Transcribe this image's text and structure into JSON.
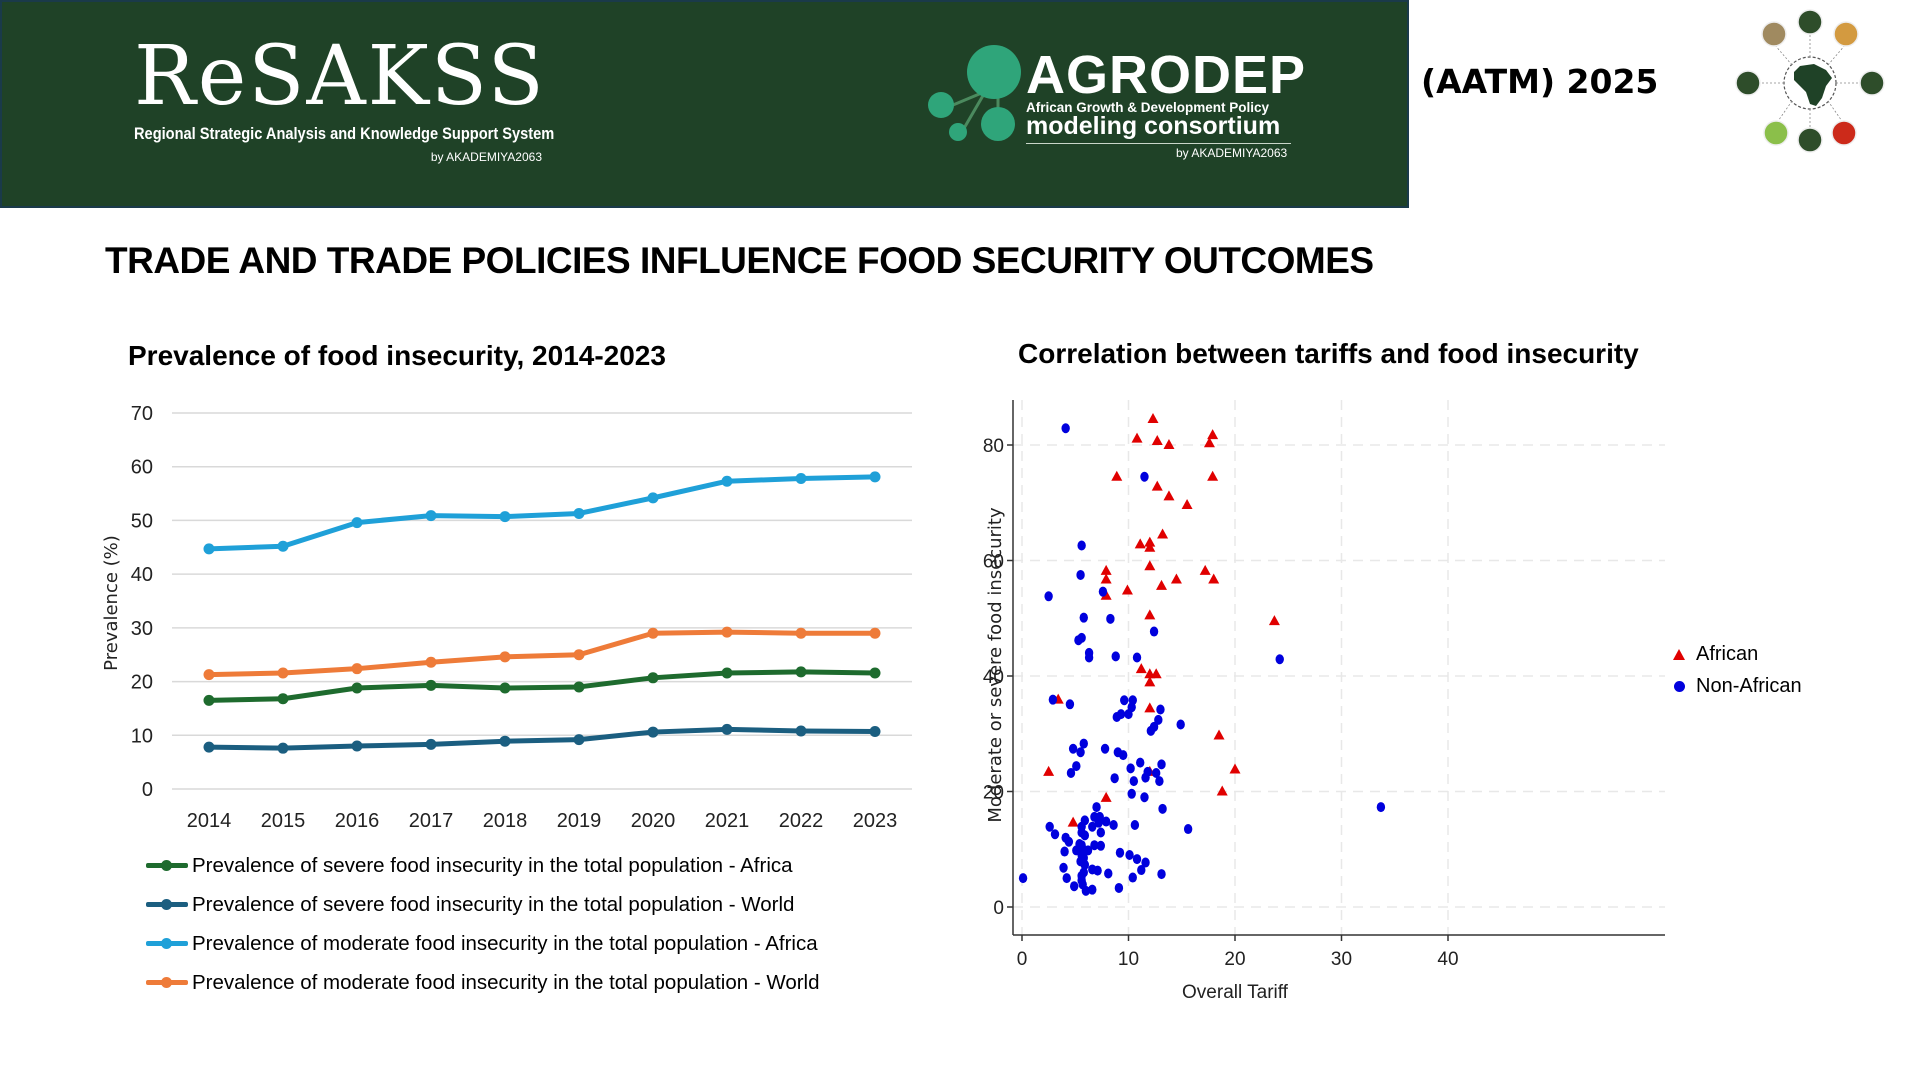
{
  "header": {
    "resakss": {
      "name": "ReSAKSS",
      "subtitle": "Regional Strategic Analysis and Knowledge Support System",
      "by": "by AKADEMIYA2063"
    },
    "agrodep": {
      "name": "AGRODEP",
      "subtitle_line1": "African Growth & Development Policy",
      "subtitle_line2": "modeling consortium",
      "by": "by AKADEMIYA2063"
    },
    "event_title": "(AATM) 2025",
    "event_logo_icon": "africa-circle-logo-icon",
    "colors": {
      "banner": "#1f4227",
      "logo_accent": "#2fa57a"
    }
  },
  "main_heading": "TRADE AND TRADE POLICIES INFLUENCE FOOD SECURITY OUTCOMES",
  "chart_data": [
    {
      "type": "line",
      "title": "Prevalence of food insecurity, 2014-2023",
      "xlabel": "",
      "ylabel": "Prevalence (%)",
      "ylim": [
        0,
        70
      ],
      "yticks": [
        "0",
        "10",
        "20",
        "30",
        "40",
        "50",
        "60",
        "70"
      ],
      "categories": [
        "2014",
        "2015",
        "2016",
        "2017",
        "2018",
        "2019",
        "2020",
        "2021",
        "2022",
        "2023"
      ],
      "grid": true,
      "legend_position": "bottom",
      "series": [
        {
          "name": "Prevalence of severe food insecurity in the total population - Africa",
          "color": "#1e6b2e",
          "values": [
            16.5,
            16.8,
            18.8,
            19.3,
            18.8,
            19.0,
            20.7,
            21.6,
            21.8,
            21.6
          ]
        },
        {
          "name": "Prevalence of severe food insecurity in the total population - World",
          "color": "#1b5e80",
          "values": [
            7.8,
            7.6,
            8.0,
            8.3,
            8.9,
            9.2,
            10.6,
            11.1,
            10.8,
            10.7
          ]
        },
        {
          "name": "Prevalence of moderate food insecurity in the total population - Africa",
          "color": "#1fa0d8",
          "values": [
            44.7,
            45.2,
            49.6,
            50.9,
            50.7,
            51.3,
            54.2,
            57.3,
            57.8,
            58.1
          ]
        },
        {
          "name": "Prevalence of moderate food insecurity in the total population - World",
          "color": "#ee7b39",
          "values": [
            21.3,
            21.6,
            22.4,
            23.6,
            24.6,
            25.0,
            29.0,
            29.2,
            29.0,
            29.0
          ]
        }
      ]
    },
    {
      "type": "scatter",
      "title": "Correlation between tariffs and food insecurity",
      "xlabel": "Overall Tariff",
      "ylabel": "Moderate or severe food insecurity",
      "xlim": [
        0,
        40
      ],
      "ylim": [
        0,
        85
      ],
      "xticks": [
        "0",
        "10",
        "20",
        "30",
        "40"
      ],
      "yticks": [
        "0",
        "20",
        "40",
        "60",
        "80"
      ],
      "grid": true,
      "legend_position": "right",
      "series": [
        {
          "name": "African",
          "marker": "triangle",
          "color": "#e00000",
          "points": [
            [
              12.3,
              84.5
            ],
            [
              10.8,
              81.1
            ],
            [
              12.7,
              80.7
            ],
            [
              13.8,
              80.0
            ],
            [
              17.9,
              81.7
            ],
            [
              17.6,
              80.3
            ],
            [
              8.9,
              74.5
            ],
            [
              17.9,
              74.5
            ],
            [
              12.7,
              72.8
            ],
            [
              13.8,
              71.1
            ],
            [
              15.5,
              69.6
            ],
            [
              13.2,
              64.5
            ],
            [
              11.1,
              62.8
            ],
            [
              12.0,
              63.1
            ],
            [
              12.0,
              62.2
            ],
            [
              7.9,
              58.2
            ],
            [
              7.9,
              56.7
            ],
            [
              12.0,
              59.0
            ],
            [
              14.5,
              56.7
            ],
            [
              17.2,
              58.2
            ],
            [
              18.0,
              56.7
            ],
            [
              9.9,
              54.8
            ],
            [
              13.1,
              55.6
            ],
            [
              7.9,
              53.9
            ],
            [
              12.0,
              50.5
            ],
            [
              23.7,
              49.5
            ],
            [
              11.2,
              41.2
            ],
            [
              12.0,
              40.3
            ],
            [
              12.6,
              40.3
            ],
            [
              12.0,
              38.9
            ],
            [
              3.4,
              35.9
            ],
            [
              12.0,
              34.4
            ],
            [
              18.5,
              29.7
            ],
            [
              12.0,
              23.4
            ],
            [
              2.5,
              23.4
            ],
            [
              20.0,
              23.8
            ],
            [
              18.8,
              20.0
            ],
            [
              7.9,
              18.9
            ],
            [
              4.8,
              14.6
            ]
          ]
        },
        {
          "name": "Non-African",
          "marker": "circle",
          "color": "#0000dd",
          "points": [
            [
              4.1,
              82.9
            ],
            [
              11.5,
              74.5
            ],
            [
              5.6,
              62.6
            ],
            [
              5.5,
              57.5
            ],
            [
              7.6,
              54.6
            ],
            [
              2.5,
              53.8
            ],
            [
              8.3,
              49.9
            ],
            [
              5.8,
              50.1
            ],
            [
              12.4,
              47.7
            ],
            [
              5.6,
              46.6
            ],
            [
              5.3,
              46.2
            ],
            [
              6.3,
              44.0
            ],
            [
              6.3,
              43.2
            ],
            [
              10.8,
              43.2
            ],
            [
              8.8,
              43.4
            ],
            [
              24.2,
              42.9
            ],
            [
              9.6,
              35.8
            ],
            [
              10.4,
              35.8
            ],
            [
              10.3,
              34.6
            ],
            [
              10.0,
              33.4
            ],
            [
              9.3,
              33.4
            ],
            [
              8.9,
              32.9
            ],
            [
              13.0,
              34.2
            ],
            [
              12.8,
              32.4
            ],
            [
              12.4,
              31.2
            ],
            [
              12.1,
              30.5
            ],
            [
              14.9,
              31.6
            ],
            [
              2.9,
              35.9
            ],
            [
              4.5,
              35.1
            ],
            [
              5.8,
              28.3
            ],
            [
              4.8,
              27.4
            ],
            [
              5.5,
              26.8
            ],
            [
              7.8,
              27.4
            ],
            [
              9.0,
              26.8
            ],
            [
              9.5,
              26.3
            ],
            [
              11.1,
              25.0
            ],
            [
              10.2,
              24.0
            ],
            [
              13.1,
              24.7
            ],
            [
              11.8,
              23.4
            ],
            [
              12.6,
              23.2
            ],
            [
              4.6,
              23.2
            ],
            [
              5.1,
              24.4
            ],
            [
              8.7,
              22.3
            ],
            [
              10.5,
              21.8
            ],
            [
              11.6,
              22.4
            ],
            [
              12.9,
              21.8
            ],
            [
              10.3,
              19.6
            ],
            [
              11.5,
              19.0
            ],
            [
              13.2,
              17.0
            ],
            [
              33.7,
              17.3
            ],
            [
              7.0,
              17.3
            ],
            [
              6.8,
              15.6
            ],
            [
              7.3,
              15.6
            ],
            [
              7.2,
              14.6
            ],
            [
              5.9,
              15.0
            ],
            [
              5.6,
              13.9
            ],
            [
              6.6,
              13.9
            ],
            [
              7.9,
              14.8
            ],
            [
              5.6,
              12.9
            ],
            [
              7.4,
              12.9
            ],
            [
              2.6,
              13.9
            ],
            [
              3.1,
              12.6
            ],
            [
              5.9,
              12.4
            ],
            [
              8.6,
              14.2
            ],
            [
              10.6,
              14.2
            ],
            [
              4.1,
              12.0
            ],
            [
              4.4,
              11.3
            ],
            [
              5.4,
              10.9
            ],
            [
              5.6,
              10.7
            ],
            [
              5.7,
              10.0
            ],
            [
              5.1,
              9.8
            ],
            [
              6.2,
              9.8
            ],
            [
              6.8,
              10.7
            ],
            [
              7.4,
              10.6
            ],
            [
              9.2,
              9.4
            ],
            [
              4.0,
              9.6
            ],
            [
              5.6,
              9.0
            ],
            [
              5.8,
              8.5
            ],
            [
              5.5,
              7.9
            ],
            [
              5.9,
              7.3
            ],
            [
              6.6,
              6.5
            ],
            [
              7.1,
              6.3
            ],
            [
              3.9,
              6.8
            ],
            [
              5.8,
              6.0
            ],
            [
              5.6,
              5.4
            ],
            [
              5.6,
              4.6
            ],
            [
              5.7,
              3.9
            ],
            [
              6.0,
              2.8
            ],
            [
              6.6,
              3.0
            ],
            [
              8.1,
              5.8
            ],
            [
              4.2,
              5.0
            ],
            [
              10.1,
              9.0
            ],
            [
              10.8,
              8.3
            ],
            [
              11.6,
              7.7
            ],
            [
              11.2,
              6.4
            ],
            [
              10.4,
              5.1
            ],
            [
              9.1,
              3.3
            ],
            [
              13.1,
              5.7
            ],
            [
              0.1,
              5.0
            ],
            [
              4.9,
              3.6
            ],
            [
              15.6,
              13.5
            ]
          ]
        }
      ]
    }
  ]
}
